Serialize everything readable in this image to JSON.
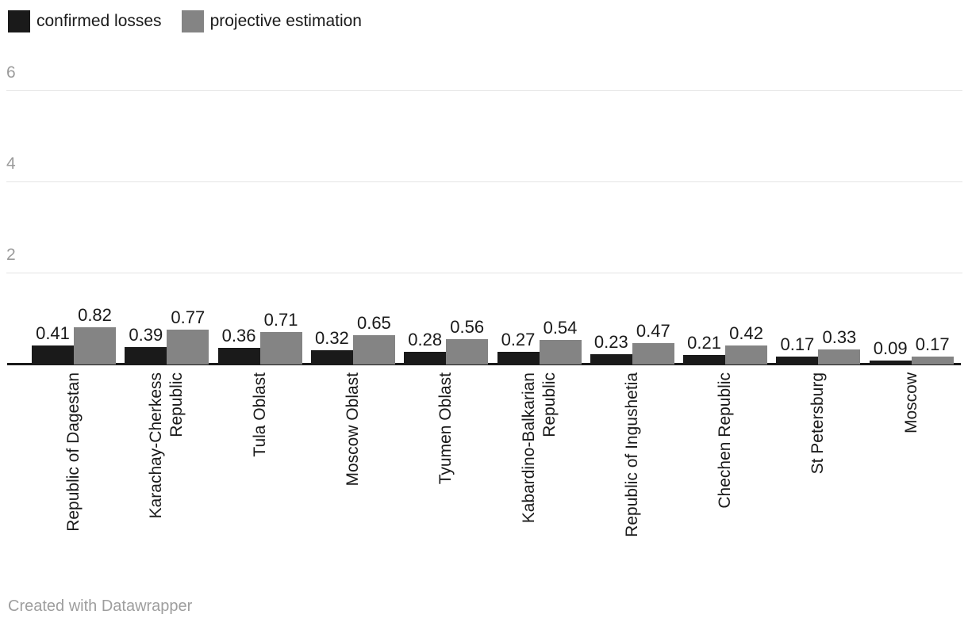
{
  "legend": {
    "items": [
      {
        "label": "confirmed losses",
        "color": "#1a1a1a"
      },
      {
        "label": "projective estimation",
        "color": "#848484"
      }
    ]
  },
  "footer": {
    "credit": "Created with Datawrapper"
  },
  "chart_data": {
    "type": "bar",
    "title": "",
    "xlabel": "",
    "ylabel": "",
    "categories": [
      "Republic of Dagestan",
      "Karachay-Cherkess\nRepublic",
      "Tula Oblast",
      "Moscow Oblast",
      "Tyumen Oblast",
      "Kabardino-Balkarian\nRepublic",
      "Republic of Ingushetia",
      "Chechen Republic",
      "St Petersburg",
      "Moscow"
    ],
    "series": [
      {
        "name": "confirmed losses",
        "color": "#1a1a1a",
        "values": [
          0.41,
          0.39,
          0.36,
          0.32,
          0.28,
          0.27,
          0.23,
          0.21,
          0.17,
          0.09
        ]
      },
      {
        "name": "projective estimation",
        "color": "#848484",
        "values": [
          0.82,
          0.77,
          0.71,
          0.65,
          0.56,
          0.54,
          0.47,
          0.42,
          0.33,
          0.17
        ]
      }
    ],
    "yticks": [
      2,
      4,
      6
    ],
    "ylim": [
      0,
      7
    ],
    "grid": "horizontal",
    "legend_position": "top-left",
    "value_labels": true,
    "bar_label_format": "0.00"
  }
}
